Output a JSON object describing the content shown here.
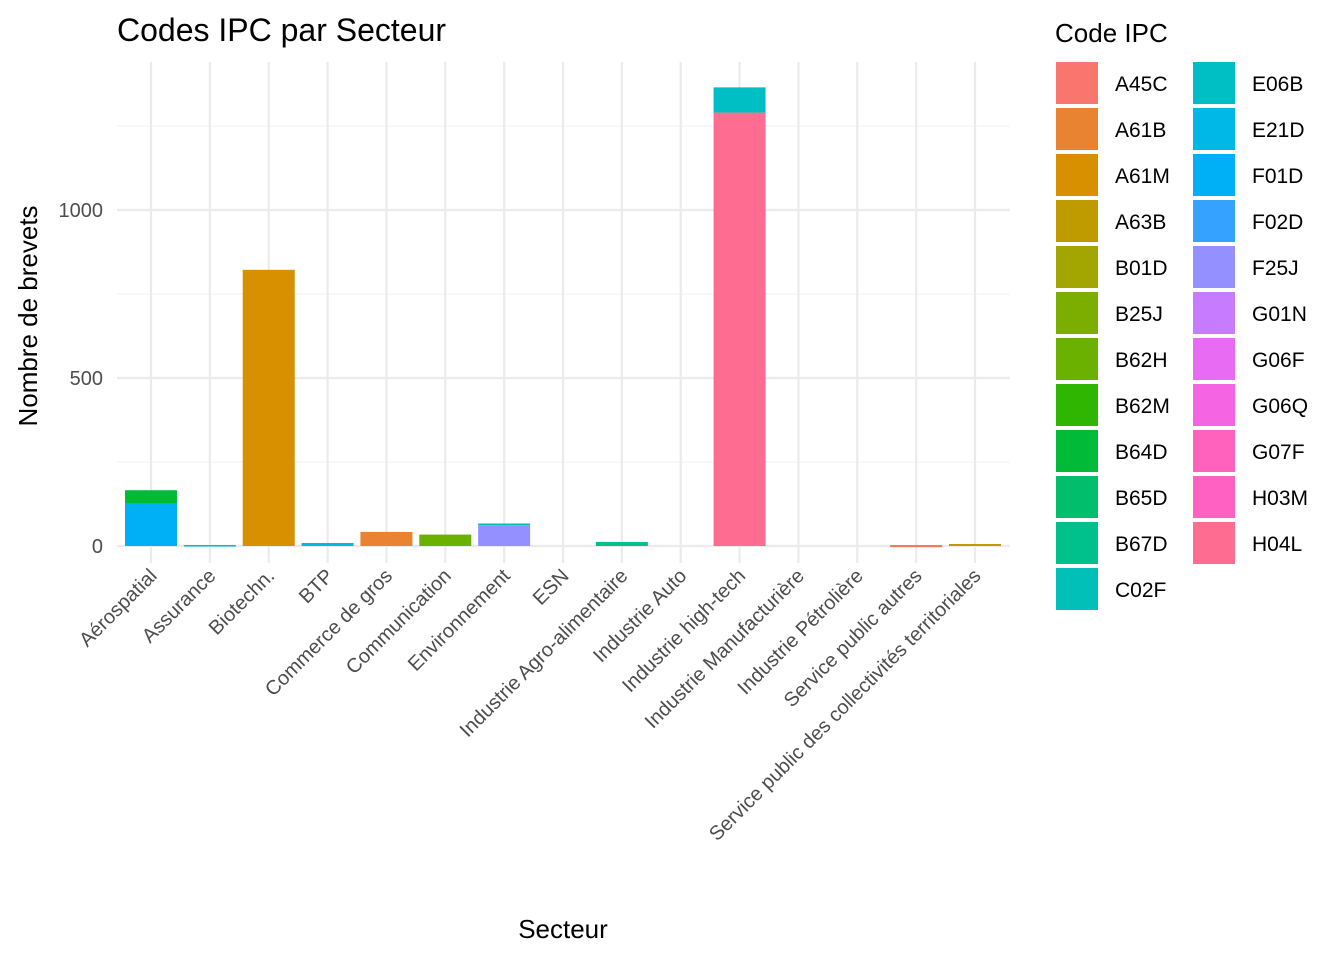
{
  "chart_data": {
    "type": "bar",
    "stacked": true,
    "title": "Codes IPC par Secteur",
    "xlabel": "Secteur",
    "ylabel": "Nombre de brevets",
    "ylim": [
      -50,
      1450
    ],
    "yticks": [
      0,
      500,
      1000
    ],
    "grid": true,
    "legend_title": "Code IPC",
    "legend_position": "right",
    "categories": [
      "Aérospatial",
      "Assurance",
      "Biotechn.",
      "BTP",
      "Commerce de gros",
      "Communication",
      "Environnement",
      "ESN",
      "Industrie Agro-alimentaire",
      "Industrie Auto",
      "Industrie high-tech",
      "Industrie Manufacturière",
      "Industrie Pétrolière",
      "Service public autres",
      "Service public des collectivités territoriales"
    ],
    "series": [
      {
        "name": "A45C",
        "color": "#F8766D",
        "values": [
          0,
          0,
          0,
          0,
          0,
          0,
          0,
          0,
          0,
          0,
          0,
          0,
          0,
          2,
          0
        ]
      },
      {
        "name": "A61B",
        "color": "#EA8331",
        "values": [
          0,
          0,
          0,
          0,
          42,
          0,
          0,
          0,
          0,
          0,
          0,
          0,
          0,
          1,
          0
        ]
      },
      {
        "name": "A61M",
        "color": "#D89000",
        "values": [
          0,
          0,
          822,
          0,
          0,
          0,
          0,
          0,
          0,
          0,
          0,
          0,
          0,
          0,
          0
        ]
      },
      {
        "name": "A63B",
        "color": "#C09B00",
        "values": [
          0,
          0,
          0,
          0,
          0,
          0,
          0,
          0,
          0,
          0,
          0,
          0,
          0,
          0,
          6
        ]
      },
      {
        "name": "B01D",
        "color": "#A3A500",
        "values": [
          0,
          0,
          0,
          0,
          0,
          0,
          0,
          0,
          0,
          0,
          0,
          0,
          0,
          0,
          0
        ]
      },
      {
        "name": "B25J",
        "color": "#7CAE00",
        "values": [
          0,
          0,
          0,
          0,
          0,
          0,
          0,
          0,
          0,
          0,
          0,
          0,
          0,
          0,
          0
        ]
      },
      {
        "name": "B62H",
        "color": "#6BB100",
        "values": [
          0,
          0,
          0,
          0,
          0,
          34,
          0,
          0,
          0,
          0,
          0,
          0,
          0,
          0,
          0
        ]
      },
      {
        "name": "B62M",
        "color": "#2FB600",
        "values": [
          0,
          0,
          0,
          0,
          0,
          0,
          0,
          0,
          0,
          0,
          0,
          0,
          0,
          0,
          0
        ]
      },
      {
        "name": "B64D",
        "color": "#00BA38",
        "values": [
          38,
          0,
          0,
          0,
          0,
          0,
          0,
          0,
          0,
          0,
          0,
          0,
          0,
          0,
          0
        ]
      },
      {
        "name": "B65D",
        "color": "#00BE6C",
        "values": [
          0,
          0,
          0,
          0,
          0,
          0,
          0,
          0,
          0,
          0,
          0,
          0,
          0,
          0,
          0
        ]
      },
      {
        "name": "B67D",
        "color": "#00C08B",
        "values": [
          0,
          0,
          0,
          0,
          0,
          0,
          0,
          0,
          12,
          0,
          0,
          0,
          0,
          0,
          0
        ]
      },
      {
        "name": "C02F",
        "color": "#00C0B8",
        "values": [
          0,
          0,
          0,
          0,
          0,
          0,
          5,
          0,
          0,
          0,
          0,
          0,
          0,
          0,
          0
        ]
      },
      {
        "name": "E06B",
        "color": "#00BFC4",
        "values": [
          0,
          0,
          0,
          0,
          0,
          0,
          0,
          0,
          0,
          0,
          75,
          0,
          0,
          0,
          0
        ]
      },
      {
        "name": "E21D",
        "color": "#00B8E7",
        "values": [
          0,
          3,
          0,
          9,
          0,
          0,
          0,
          0,
          0,
          0,
          0,
          0,
          0,
          0,
          0
        ]
      },
      {
        "name": "F01D",
        "color": "#00B0F6",
        "values": [
          128,
          0,
          0,
          0,
          0,
          0,
          0,
          0,
          0,
          0,
          0,
          0,
          0,
          0,
          0
        ]
      },
      {
        "name": "F02D",
        "color": "#35A2FF",
        "values": [
          0,
          0,
          0,
          0,
          0,
          0,
          0,
          0,
          0,
          0,
          0,
          0,
          0,
          0,
          0
        ]
      },
      {
        "name": "F25J",
        "color": "#9590FF",
        "values": [
          0,
          0,
          0,
          0,
          0,
          0,
          62,
          0,
          0,
          0,
          0,
          0,
          0,
          0,
          0
        ]
      },
      {
        "name": "G01N",
        "color": "#C77CFF",
        "values": [
          0,
          0,
          0,
          0,
          0,
          0,
          0,
          0,
          0,
          0,
          0,
          0,
          0,
          0,
          0
        ]
      },
      {
        "name": "G06F",
        "color": "#E76BF3",
        "values": [
          0,
          0,
          0,
          0,
          0,
          0,
          0,
          0,
          0,
          0,
          0,
          0,
          0,
          0,
          0
        ]
      },
      {
        "name": "G06Q",
        "color": "#F564E3",
        "values": [
          0,
          0,
          0,
          0,
          0,
          0,
          0,
          0,
          0,
          0,
          0,
          0,
          0,
          0,
          0
        ]
      },
      {
        "name": "G07F",
        "color": "#FF62BC",
        "values": [
          0,
          0,
          0,
          0,
          0,
          0,
          0,
          0,
          0,
          0,
          0,
          0,
          0,
          0,
          0
        ]
      },
      {
        "name": "H03M",
        "color": "#FF61C3",
        "values": [
          0,
          0,
          0,
          0,
          0,
          0,
          0,
          0,
          0,
          0,
          0,
          0,
          0,
          0,
          0
        ]
      },
      {
        "name": "H04L",
        "color": "#FF6C91",
        "values": [
          0,
          0,
          0,
          0,
          0,
          0,
          0,
          0,
          0,
          0,
          1290,
          0,
          0,
          0,
          0
        ]
      }
    ]
  }
}
